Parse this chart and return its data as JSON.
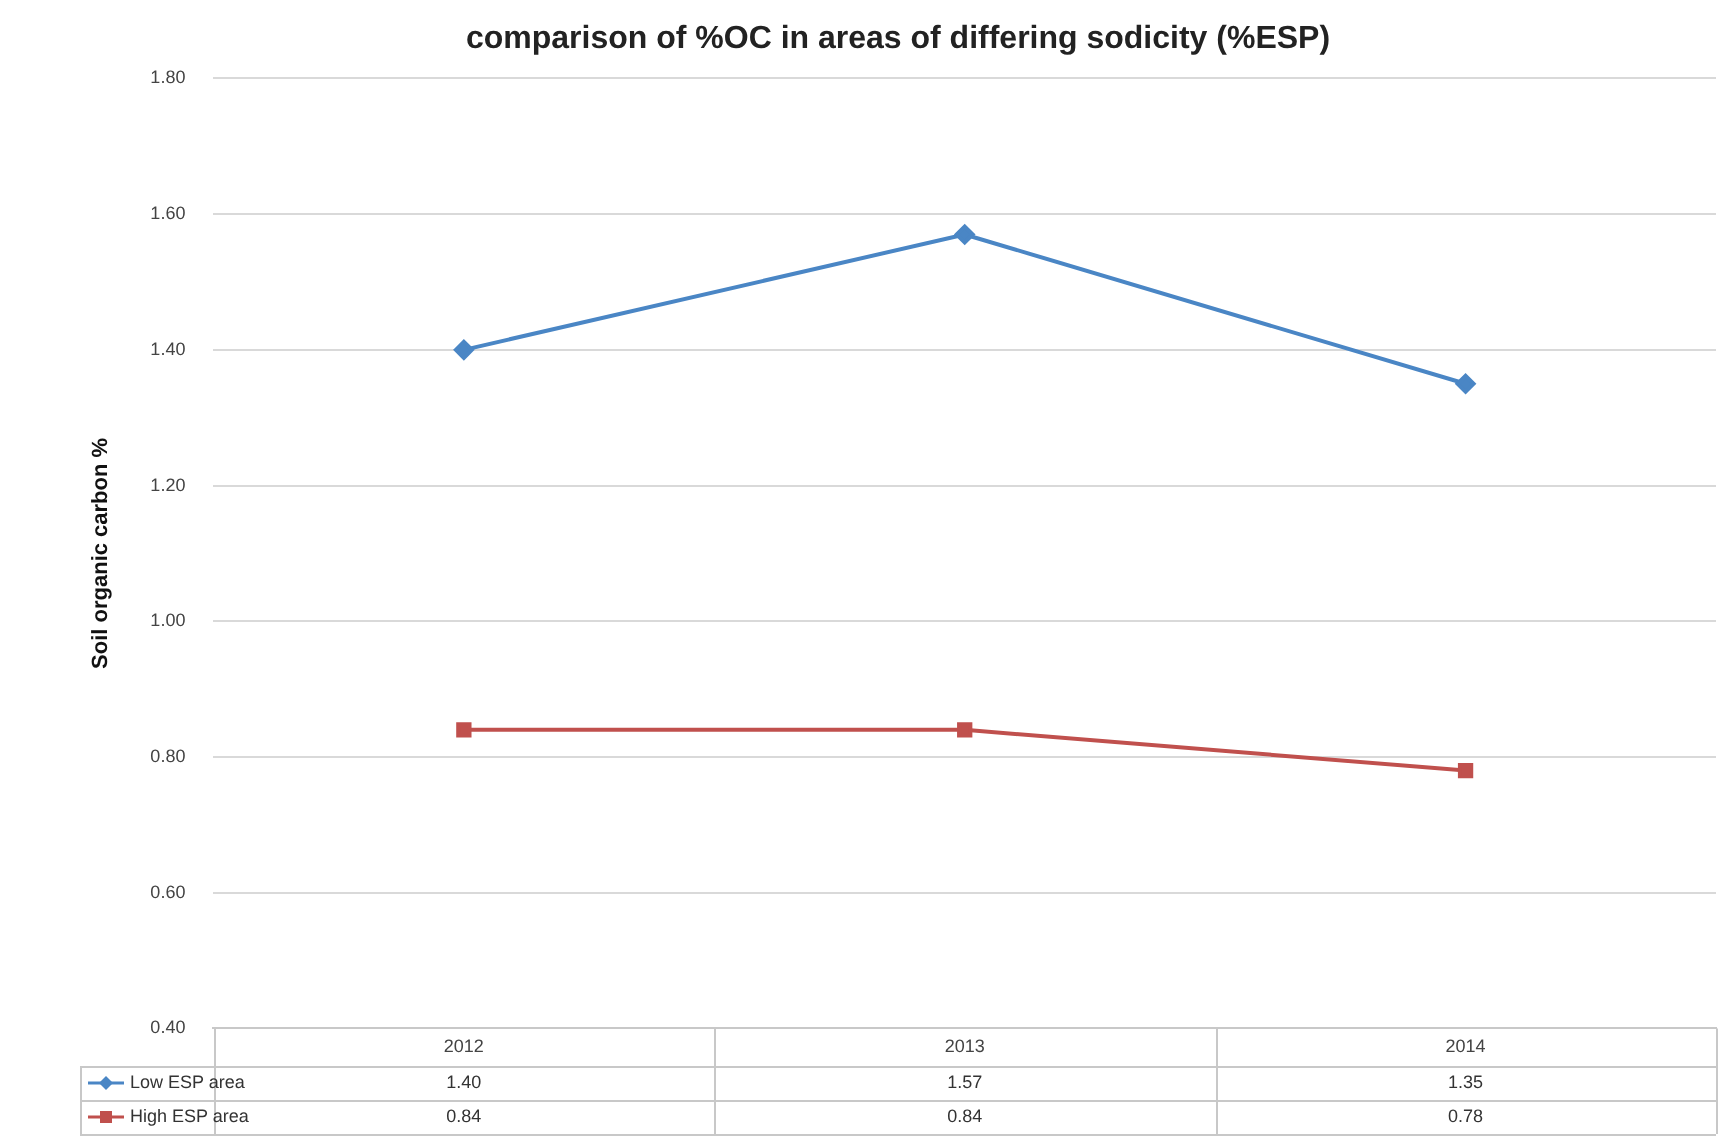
{
  "chart_data": {
    "type": "line",
    "title": "comparison of %OC in areas of differing sodicity (%ESP)",
    "ylabel": "Soil organic carbon %",
    "categories": [
      "2012",
      "2013",
      "2014"
    ],
    "series": [
      {
        "name": "Low ESP area",
        "color": "#4a86c5",
        "values": [
          1.4,
          1.57,
          1.35
        ],
        "marker": "diamond",
        "value_labels": [
          "1.40",
          "1.57",
          "1.35"
        ]
      },
      {
        "name": "High ESP area",
        "color": "#c0504d",
        "values": [
          0.84,
          0.84,
          0.78
        ],
        "marker": "square",
        "value_labels": [
          "0.84",
          "0.84",
          "0.78"
        ]
      }
    ],
    "ylim": [
      0.4,
      1.8
    ],
    "yticks": [
      {
        "value": 0.4,
        "label": "0.40"
      },
      {
        "value": 0.6,
        "label": "0.60"
      },
      {
        "value": 0.8,
        "label": "0.80"
      },
      {
        "value": 1.0,
        "label": "1.00"
      },
      {
        "value": 1.2,
        "label": "1.20"
      },
      {
        "value": 1.4,
        "label": "1.40"
      },
      {
        "value": 1.6,
        "label": "1.60"
      },
      {
        "value": 1.8,
        "label": "1.80"
      }
    ],
    "grid": "y",
    "legend": "bottom",
    "line_style": "solid"
  }
}
